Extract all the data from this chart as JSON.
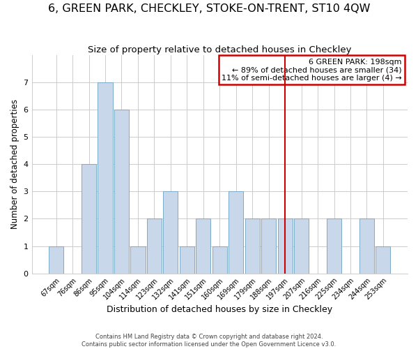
{
  "title": "6, GREEN PARK, CHECKLEY, STOKE-ON-TRENT, ST10 4QW",
  "subtitle": "Size of property relative to detached houses in Checkley",
  "xlabel": "Distribution of detached houses by size in Checkley",
  "ylabel": "Number of detached properties",
  "bar_labels": [
    "67sqm",
    "76sqm",
    "86sqm",
    "95sqm",
    "104sqm",
    "114sqm",
    "123sqm",
    "132sqm",
    "141sqm",
    "151sqm",
    "160sqm",
    "169sqm",
    "179sqm",
    "188sqm",
    "197sqm",
    "207sqm",
    "216sqm",
    "225sqm",
    "234sqm",
    "244sqm",
    "253sqm"
  ],
  "bar_values": [
    1,
    0,
    4,
    7,
    6,
    1,
    2,
    3,
    1,
    2,
    1,
    3,
    2,
    2,
    2,
    2,
    0,
    2,
    0,
    2,
    1
  ],
  "bar_color": "#c8d8ea",
  "bar_edge_color": "#7aaac8",
  "ylim": [
    0,
    8
  ],
  "yticks": [
    0,
    1,
    2,
    3,
    4,
    5,
    6,
    7
  ],
  "red_line_index": 14,
  "annotation_title": "6 GREEN PARK: 198sqm",
  "annotation_line1": "← 89% of detached houses are smaller (34)",
  "annotation_line2": "11% of semi-detached houses are larger (4) →",
  "annotation_box_color": "#ffffff",
  "annotation_box_edge": "#cc0000",
  "footer1": "Contains HM Land Registry data © Crown copyright and database right 2024.",
  "footer2": "Contains public sector information licensed under the Open Government Licence v3.0.",
  "title_fontsize": 11.5,
  "subtitle_fontsize": 9.5,
  "xlabel_fontsize": 9,
  "ylabel_fontsize": 8.5,
  "grid_color": "#cccccc",
  "background_color": "#ffffff"
}
